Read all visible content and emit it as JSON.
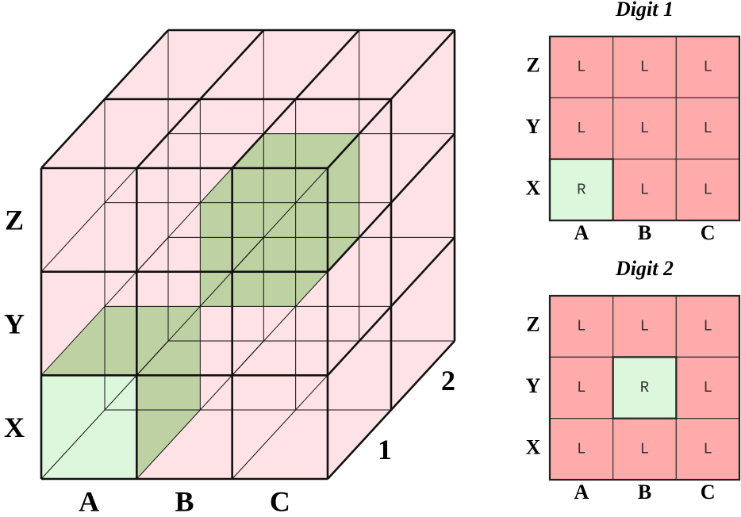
{
  "cube": {
    "row_labels": [
      "Z",
      "Y",
      "X"
    ],
    "col_labels": [
      "A",
      "B",
      "C"
    ],
    "depth_labels": [
      "1",
      "2"
    ]
  },
  "grids": [
    {
      "title": "Digit 1",
      "row_labels": [
        "Z",
        "Y",
        "X"
      ],
      "col_labels": [
        "A",
        "B",
        "C"
      ],
      "cells": [
        [
          "L",
          "L",
          "L"
        ],
        [
          "L",
          "L",
          "L"
        ],
        [
          "R",
          "L",
          "L"
        ]
      ]
    },
    {
      "title": "Digit 2",
      "row_labels": [
        "Z",
        "Y",
        "X"
      ],
      "col_labels": [
        "A",
        "B",
        "C"
      ],
      "cells": [
        [
          "L",
          "L",
          "L"
        ],
        [
          "L",
          "R",
          "L"
        ],
        [
          "L",
          "L",
          "L"
        ]
      ]
    }
  ],
  "cell_colors": {
    "L": "#ffabab",
    "R": "#dcf7dc"
  }
}
